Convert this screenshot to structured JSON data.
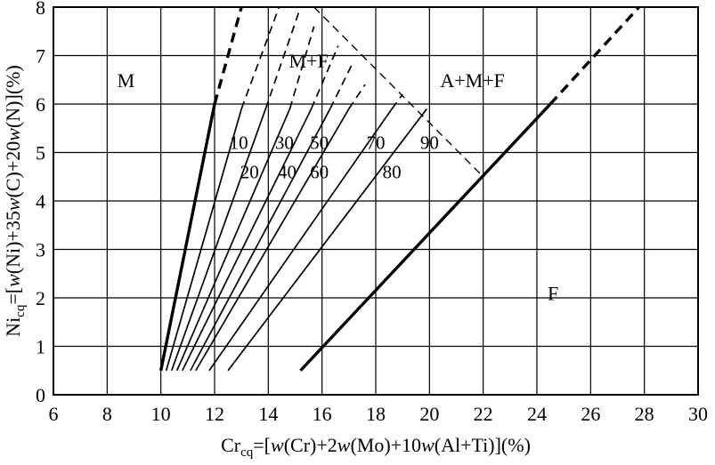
{
  "chart_data": {
    "type": "line",
    "title": "",
    "xlabel": {
      "prefix": "Cr",
      "sub": "cq",
      "p1": "=[",
      "w1": "w",
      "p2": "(Cr)+2",
      "w2": "w",
      "p3": "(Mo)+10",
      "w3": "w",
      "p4": "(Al+Ti)](%)"
    },
    "ylabel": {
      "prefix": "Ni",
      "sub": "cq",
      "p1": "=[",
      "w1": "w",
      "p2": "(Ni)+35",
      "w2": "w",
      "p3": "(C)+20",
      "w3": "w",
      "p4": "(N)](%)"
    },
    "xlim": [
      6,
      30
    ],
    "ylim": [
      0,
      8
    ],
    "xticks": [
      "6",
      "8",
      "10",
      "12",
      "14",
      "16",
      "18",
      "20",
      "22",
      "24",
      "26",
      "28",
      "30"
    ],
    "yticks": [
      "0",
      "1",
      "2",
      "3",
      "4",
      "5",
      "6",
      "7",
      "8"
    ],
    "grid": true,
    "regions": [
      {
        "label": "M",
        "x": 8.7,
        "y": 6.5
      },
      {
        "label": "M+F",
        "x": 15.5,
        "y": 6.9
      },
      {
        "label": "A+M+F",
        "x": 21.6,
        "y": 6.5
      },
      {
        "label": "F",
        "x": 24.6,
        "y": 2.1
      }
    ],
    "series": [
      {
        "label": "",
        "heavy": true,
        "solid": [
          [
            10.0,
            0.5
          ],
          [
            12.0,
            6.0
          ]
        ],
        "dashed": [
          [
            12.0,
            6.0
          ],
          [
            13.0,
            8.0
          ]
        ]
      },
      {
        "label": "10",
        "heavy": false,
        "solid": [
          [
            10.2,
            0.5
          ],
          [
            13.0,
            5.9
          ]
        ],
        "dashed": [
          [
            13.0,
            5.9
          ],
          [
            14.4,
            8.0
          ]
        ]
      },
      {
        "label": "20",
        "heavy": false,
        "solid": [
          [
            10.4,
            0.5
          ],
          [
            13.9,
            5.9
          ]
        ],
        "dashed": [
          [
            13.9,
            5.9
          ],
          [
            15.2,
            8.0
          ]
        ]
      },
      {
        "label": "30",
        "heavy": false,
        "solid": [
          [
            10.6,
            0.5
          ],
          [
            14.8,
            5.9
          ]
        ],
        "dashed": [
          [
            14.8,
            5.9
          ],
          [
            15.7,
            7.6
          ]
        ]
      },
      {
        "label": "40",
        "heavy": false,
        "solid": [
          [
            10.8,
            0.5
          ],
          [
            15.6,
            5.9
          ]
        ],
        "dashed": [
          [
            15.6,
            5.9
          ],
          [
            16.6,
            7.2
          ]
        ]
      },
      {
        "label": "50",
        "heavy": false,
        "solid": [
          [
            11.1,
            0.5
          ],
          [
            16.3,
            5.9
          ]
        ],
        "dashed": [
          [
            16.3,
            5.9
          ],
          [
            17.1,
            6.8
          ]
        ]
      },
      {
        "label": "60",
        "heavy": false,
        "solid": [
          [
            11.3,
            0.5
          ],
          [
            17.0,
            5.9
          ]
        ],
        "dashed": [
          [
            17.0,
            5.9
          ],
          [
            17.6,
            6.4
          ]
        ]
      },
      {
        "label": "70",
        "heavy": false,
        "solid": [
          [
            11.8,
            0.5
          ],
          [
            18.6,
            5.9
          ]
        ],
        "dashed": [
          [
            18.6,
            5.9
          ],
          [
            19.0,
            6.2
          ]
        ]
      },
      {
        "label": "80",
        "heavy": false,
        "solid": [
          [
            12.5,
            0.5
          ],
          [
            19.9,
            5.9
          ]
        ],
        "dashed": []
      },
      {
        "label": "90",
        "heavy": false,
        "solid": [],
        "dashed": []
      },
      {
        "label": "",
        "heavy": true,
        "solid": [
          [
            15.2,
            0.5
          ],
          [
            24.5,
            6.0
          ]
        ],
        "dashed": [
          [
            24.5,
            6.0
          ],
          [
            27.8,
            8.0
          ]
        ]
      }
    ],
    "boundary": [
      [
        15.7,
        8.0
      ],
      [
        22.0,
        4.5
      ]
    ],
    "curve_labels": [
      {
        "text": "10",
        "x": 12.9,
        "y": 5.2
      },
      {
        "text": "30",
        "x": 14.6,
        "y": 5.2
      },
      {
        "text": "50",
        "x": 15.9,
        "y": 5.2
      },
      {
        "text": "70",
        "x": 18.0,
        "y": 5.2
      },
      {
        "text": "90",
        "x": 20.0,
        "y": 5.2
      },
      {
        "text": "20",
        "x": 13.3,
        "y": 4.6
      },
      {
        "text": "40",
        "x": 14.7,
        "y": 4.6
      },
      {
        "text": "60",
        "x": 15.9,
        "y": 4.6
      },
      {
        "text": "80",
        "x": 18.6,
        "y": 4.6
      }
    ]
  }
}
